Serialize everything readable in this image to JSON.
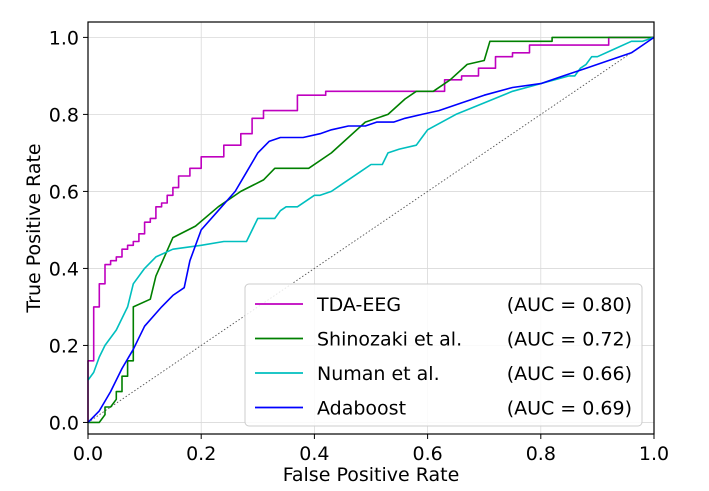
{
  "chart_data": {
    "type": "line",
    "xlabel": "False Positive Rate",
    "ylabel": "True Positive Rate",
    "xlim": [
      0.0,
      1.0
    ],
    "ylim": [
      -0.03,
      1.04
    ],
    "xticks": [
      "0.0",
      "0.2",
      "0.4",
      "0.6",
      "0.8",
      "1.0"
    ],
    "yticks": [
      "0.0",
      "0.2",
      "0.4",
      "0.6",
      "0.8",
      "1.0"
    ],
    "grid": true,
    "legend_position": "lower-right",
    "series": [
      {
        "name": "TDA-EEG",
        "auc_label": "(AUC = 0.80)",
        "color": "#bf00bf",
        "x": [
          0,
          0,
          0.01,
          0.01,
          0.02,
          0.02,
          0.03,
          0.03,
          0.04,
          0.04,
          0.05,
          0.05,
          0.06,
          0.06,
          0.07,
          0.07,
          0.08,
          0.08,
          0.09,
          0.09,
          0.1,
          0.1,
          0.11,
          0.11,
          0.12,
          0.12,
          0.13,
          0.13,
          0.14,
          0.14,
          0.15,
          0.15,
          0.16,
          0.16,
          0.18,
          0.18,
          0.2,
          0.2,
          0.24,
          0.24,
          0.27,
          0.27,
          0.29,
          0.29,
          0.31,
          0.31,
          0.37,
          0.37,
          0.42,
          0.42,
          0.57,
          0.57,
          0.63,
          0.63,
          0.66,
          0.66,
          0.69,
          0.69,
          0.72,
          0.72,
          0.75,
          0.75,
          0.78,
          0.78,
          0.84,
          0.84,
          0.92,
          0.92,
          1.0
        ],
        "y": [
          0,
          0.16,
          0.16,
          0.3,
          0.3,
          0.36,
          0.36,
          0.41,
          0.41,
          0.42,
          0.42,
          0.43,
          0.43,
          0.45,
          0.45,
          0.46,
          0.46,
          0.47,
          0.47,
          0.49,
          0.49,
          0.52,
          0.52,
          0.53,
          0.53,
          0.56,
          0.56,
          0.57,
          0.57,
          0.59,
          0.59,
          0.61,
          0.61,
          0.64,
          0.64,
          0.66,
          0.66,
          0.69,
          0.69,
          0.72,
          0.72,
          0.75,
          0.75,
          0.79,
          0.79,
          0.81,
          0.81,
          0.85,
          0.85,
          0.86,
          0.86,
          0.86,
          0.86,
          0.89,
          0.89,
          0.9,
          0.9,
          0.92,
          0.92,
          0.95,
          0.95,
          0.96,
          0.96,
          0.98,
          0.98,
          0.98,
          0.98,
          1.0,
          1.0
        ]
      },
      {
        "name": "Shinozaki et al.",
        "auc_label": "(AUC = 0.72)",
        "color": "#008000",
        "x": [
          0,
          0.02,
          0.03,
          0.03,
          0.04,
          0.05,
          0.05,
          0.06,
          0.06,
          0.07,
          0.07,
          0.08,
          0.08,
          0.11,
          0.12,
          0.15,
          0.19,
          0.23,
          0.27,
          0.31,
          0.33,
          0.39,
          0.43,
          0.49,
          0.53,
          0.56,
          0.58,
          0.61,
          0.64,
          0.67,
          0.7,
          0.71,
          0.82,
          0.82,
          0.92,
          1.0
        ],
        "y": [
          0,
          0,
          0.02,
          0.04,
          0.04,
          0.06,
          0.08,
          0.08,
          0.12,
          0.12,
          0.16,
          0.16,
          0.3,
          0.32,
          0.38,
          0.48,
          0.51,
          0.56,
          0.6,
          0.63,
          0.66,
          0.66,
          0.7,
          0.78,
          0.8,
          0.84,
          0.86,
          0.86,
          0.89,
          0.93,
          0.94,
          0.99,
          0.99,
          1.0,
          1.0,
          1.0
        ]
      },
      {
        "name": "Numan et al.",
        "auc_label": "(AUC = 0.66)",
        "color": "#00bfbf",
        "x": [
          0,
          0.01,
          0.02,
          0.03,
          0.05,
          0.07,
          0.08,
          0.1,
          0.12,
          0.15,
          0.2,
          0.24,
          0.28,
          0.3,
          0.33,
          0.34,
          0.35,
          0.37,
          0.4,
          0.41,
          0.43,
          0.45,
          0.48,
          0.5,
          0.52,
          0.53,
          0.55,
          0.58,
          0.59,
          0.6,
          0.65,
          0.7,
          0.75,
          0.8,
          0.85,
          0.86,
          0.87,
          0.88,
          0.89,
          0.9,
          0.93,
          0.96,
          0.98,
          1.0
        ],
        "y": [
          0.11,
          0.13,
          0.17,
          0.2,
          0.24,
          0.3,
          0.36,
          0.4,
          0.43,
          0.45,
          0.46,
          0.47,
          0.47,
          0.53,
          0.53,
          0.55,
          0.56,
          0.56,
          0.59,
          0.59,
          0.6,
          0.62,
          0.65,
          0.67,
          0.67,
          0.7,
          0.71,
          0.72,
          0.74,
          0.76,
          0.8,
          0.83,
          0.86,
          0.88,
          0.9,
          0.9,
          0.92,
          0.93,
          0.95,
          0.95,
          0.97,
          0.99,
          0.99,
          1.0
        ]
      },
      {
        "name": "Adaboost",
        "auc_label": "(AUC = 0.69)",
        "color": "#0000ff",
        "x": [
          0,
          0.02,
          0.04,
          0.06,
          0.08,
          0.1,
          0.13,
          0.15,
          0.17,
          0.18,
          0.2,
          0.23,
          0.26,
          0.28,
          0.3,
          0.32,
          0.34,
          0.38,
          0.41,
          0.43,
          0.46,
          0.49,
          0.51,
          0.54,
          0.56,
          0.59,
          0.62,
          0.66,
          0.7,
          0.75,
          0.8,
          0.84,
          0.88,
          0.92,
          0.96,
          0.98,
          1.0
        ],
        "y": [
          0,
          0.03,
          0.08,
          0.14,
          0.19,
          0.25,
          0.3,
          0.33,
          0.35,
          0.42,
          0.5,
          0.55,
          0.6,
          0.65,
          0.7,
          0.73,
          0.74,
          0.74,
          0.75,
          0.76,
          0.77,
          0.77,
          0.78,
          0.78,
          0.79,
          0.8,
          0.81,
          0.83,
          0.85,
          0.87,
          0.88,
          0.9,
          0.92,
          0.94,
          0.96,
          0.98,
          1.0
        ]
      }
    ],
    "reference_line": {
      "x": [
        0,
        1
      ],
      "y": [
        0,
        1
      ],
      "color": "#555555"
    }
  }
}
